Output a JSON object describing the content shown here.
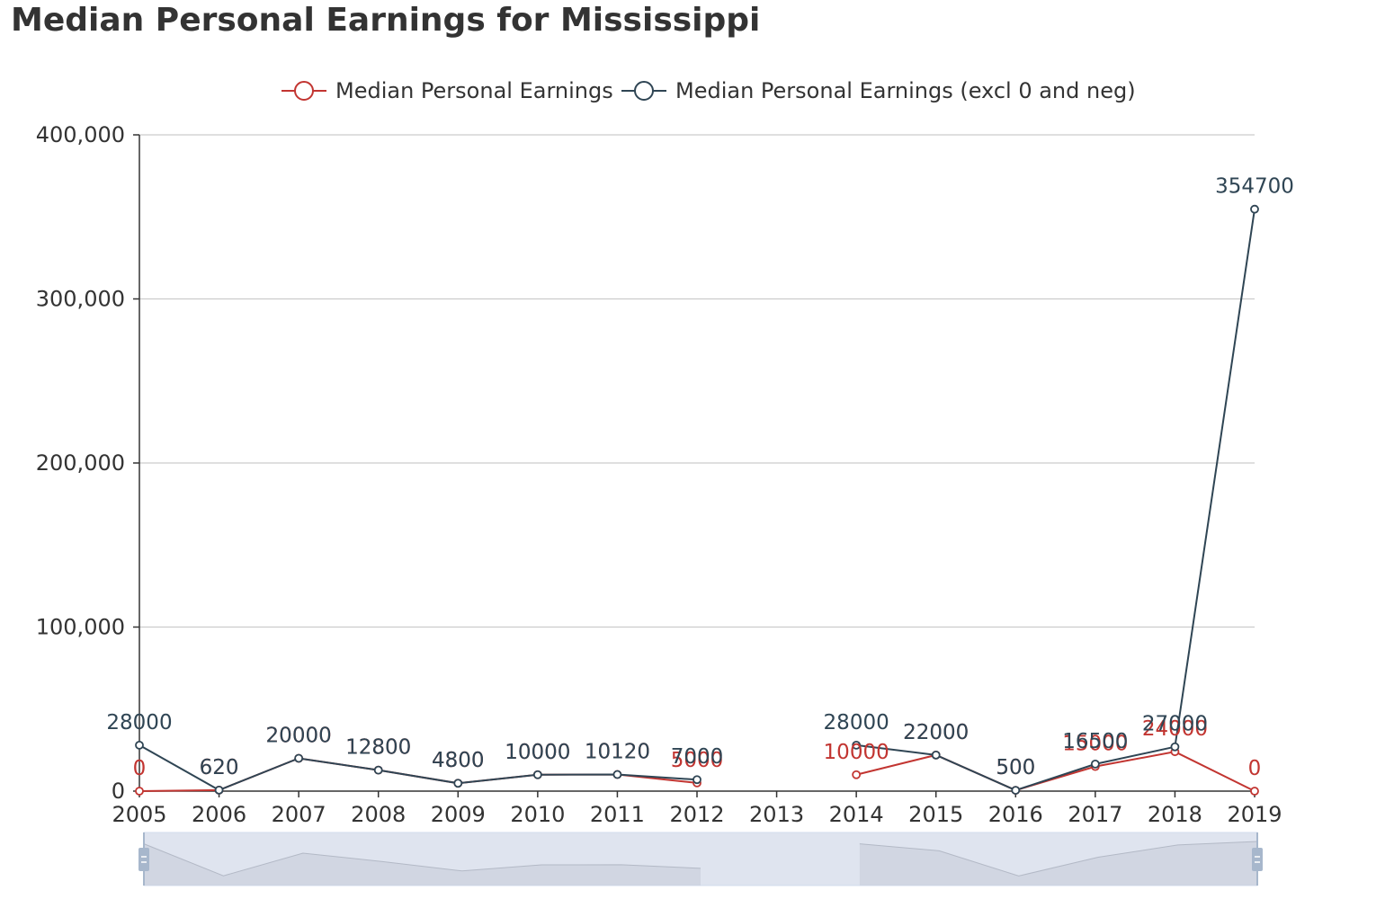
{
  "title": "Median Personal Earnings for Mississippi",
  "chart_data": {
    "type": "line",
    "title": "Median Personal Earnings for Mississippi",
    "xlabel": "",
    "ylabel": "",
    "categories": [
      "2005",
      "2006",
      "2007",
      "2008",
      "2009",
      "2010",
      "2011",
      "2012",
      "2013",
      "2014",
      "2015",
      "2016",
      "2017",
      "2018",
      "2019"
    ],
    "ylim": [
      0,
      400000
    ],
    "yticks": [
      0,
      100000,
      200000,
      300000,
      400000
    ],
    "ytick_labels": [
      "0",
      "100,000",
      "200,000",
      "300,000",
      "400,000"
    ],
    "grid": true,
    "legend_position": "top-center",
    "series": [
      {
        "name": "Median Personal Earnings",
        "color": "#c23531",
        "values": [
          0,
          620,
          20000,
          12800,
          4800,
          10000,
          10120,
          5000,
          null,
          10000,
          22000,
          500,
          15000,
          24000,
          0
        ]
      },
      {
        "name": "Median Personal Earnings (excl 0 and neg)",
        "color": "#2f4554",
        "values": [
          28000,
          620,
          20000,
          12800,
          4800,
          10000,
          10120,
          7000,
          null,
          28000,
          22000,
          500,
          16500,
          27000,
          354700
        ]
      }
    ]
  },
  "data_zoom": {
    "start_label": "",
    "end_label": ""
  }
}
